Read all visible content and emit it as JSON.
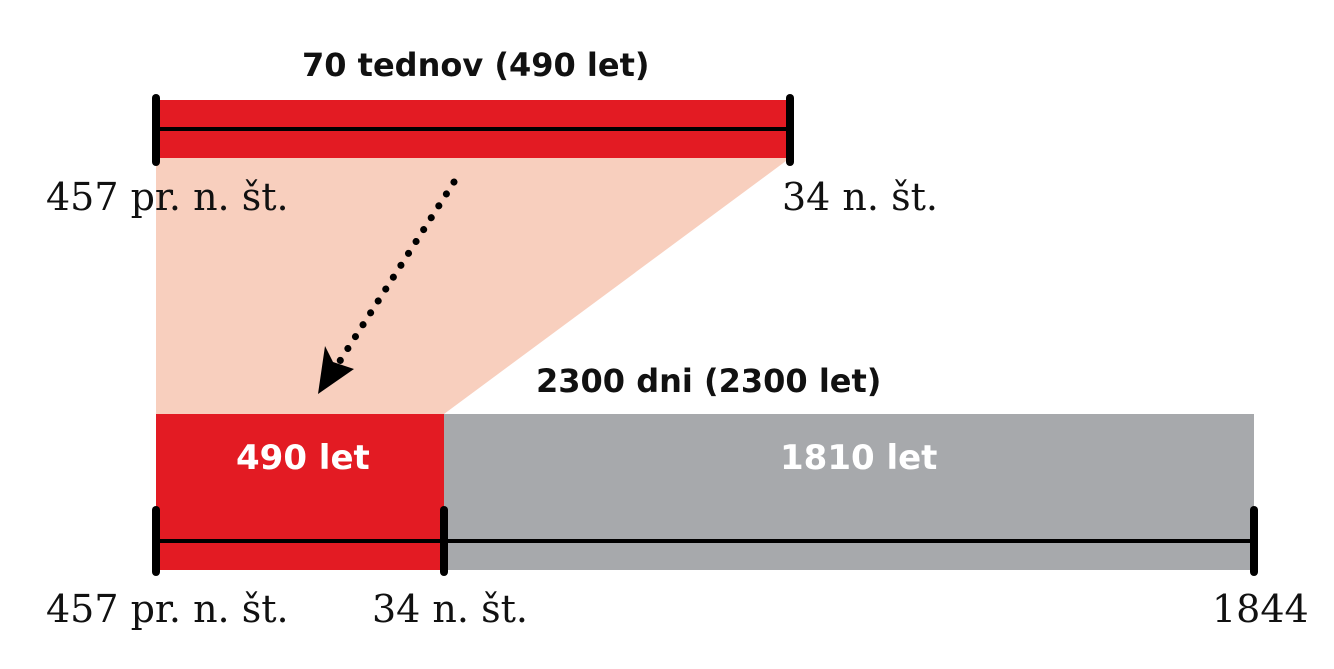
{
  "diagram": {
    "top_period": {
      "title": "70 tednov (490 let)",
      "start_label": "457 pr. n. št.",
      "end_label": "34 n. št."
    },
    "bottom_period": {
      "title": "2300 dni (2300 let)",
      "segments": [
        {
          "label": "490 let",
          "color": "#e31b23"
        },
        {
          "label": "1810 let",
          "color": "#a7a9ac"
        }
      ],
      "tick_labels": [
        "457 pr. n. št.",
        "34 n. št.",
        "1844"
      ]
    },
    "colors": {
      "highlight": "#e31b23",
      "remainder": "#a7a9ac",
      "projection": "#f8cfbe",
      "line": "#000000",
      "bar_text": "#ffffff"
    }
  }
}
